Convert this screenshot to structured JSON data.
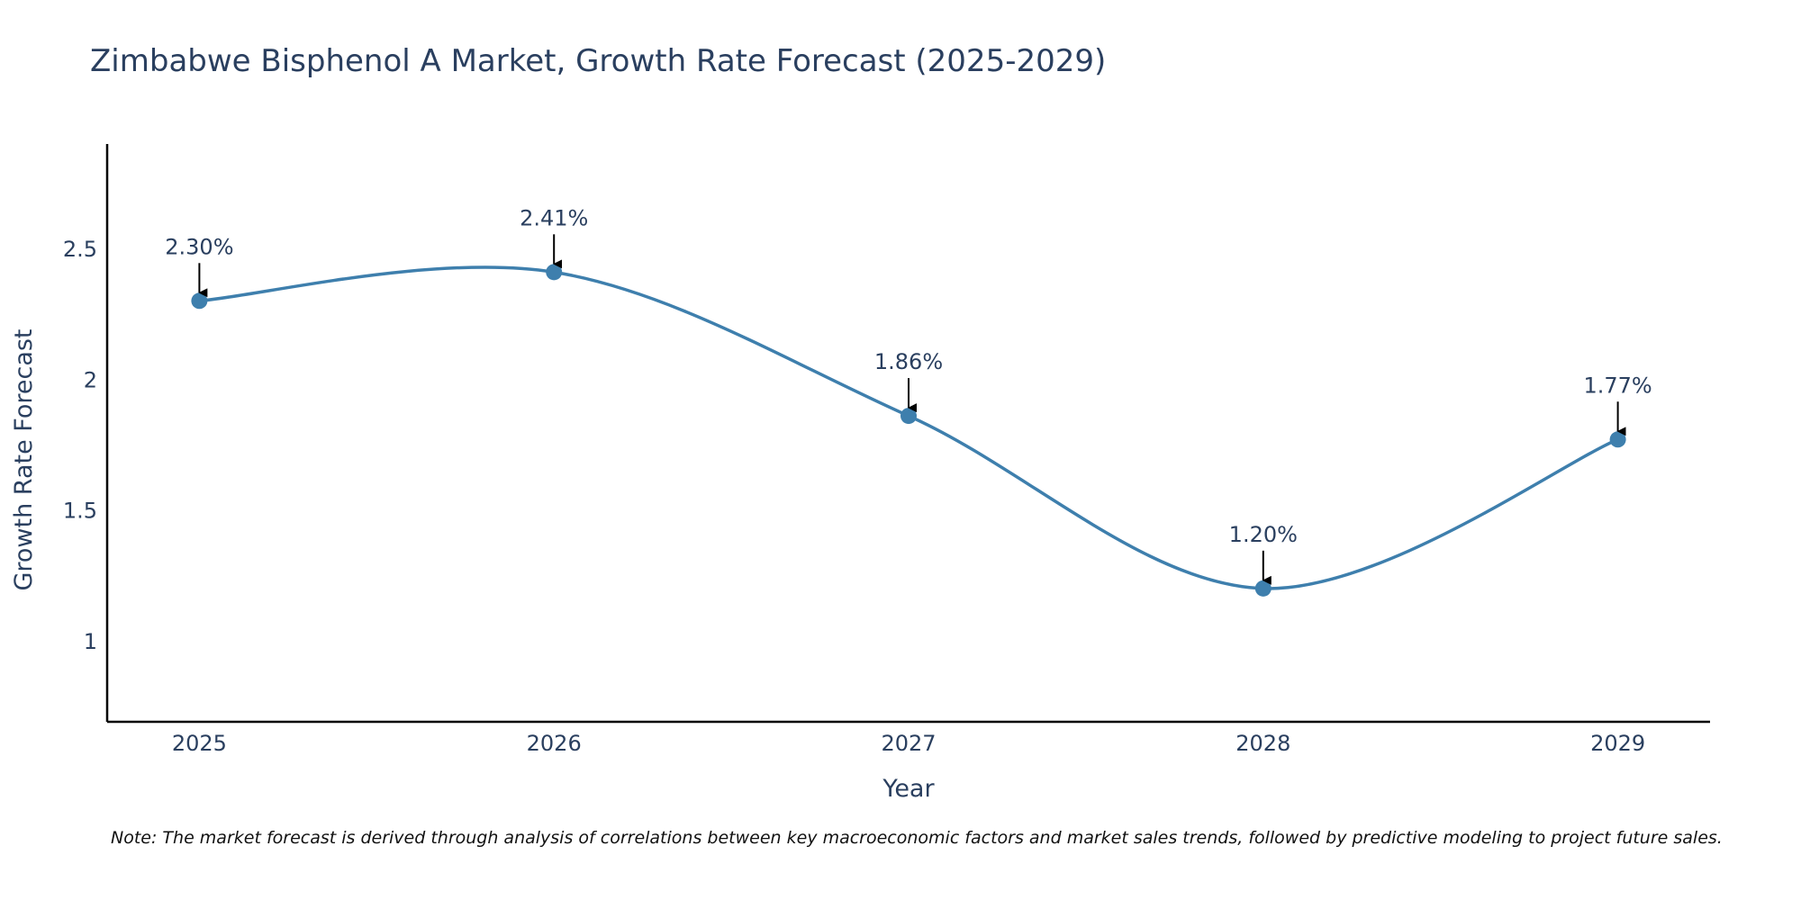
{
  "chart_data": {
    "type": "line",
    "title": "Zimbabwe Bisphenol A Market, Growth Rate Forecast (2025-2029)",
    "xlabel": "Year",
    "ylabel": "Growth Rate Forecast",
    "x": [
      2025,
      2026,
      2027,
      2028,
      2029
    ],
    "x_tick_labels": [
      "2025",
      "2026",
      "2027",
      "2028",
      "2029"
    ],
    "values": [
      2.3,
      2.41,
      1.86,
      1.2,
      1.77
    ],
    "data_labels": [
      "2.30%",
      "2.41%",
      "1.86%",
      "1.20%",
      "1.77%"
    ],
    "y_ticks": [
      1,
      1.5,
      2,
      2.5
    ],
    "y_tick_labels": [
      "1",
      "1.5",
      "2",
      "2.5"
    ],
    "ylim": [
      0.69,
      2.9
    ],
    "xlim": [
      2024.74,
      2029.26
    ],
    "grid": false,
    "line_shape": "spline",
    "line_color": "#3e7fad",
    "marker_color": "#3e7fad",
    "annotation_arrow_color": "#000000",
    "note": "Note: The market forecast is derived through analysis of correlations between key macroeconomic factors and market sales trends, followed by predictive modeling to project future sales."
  }
}
